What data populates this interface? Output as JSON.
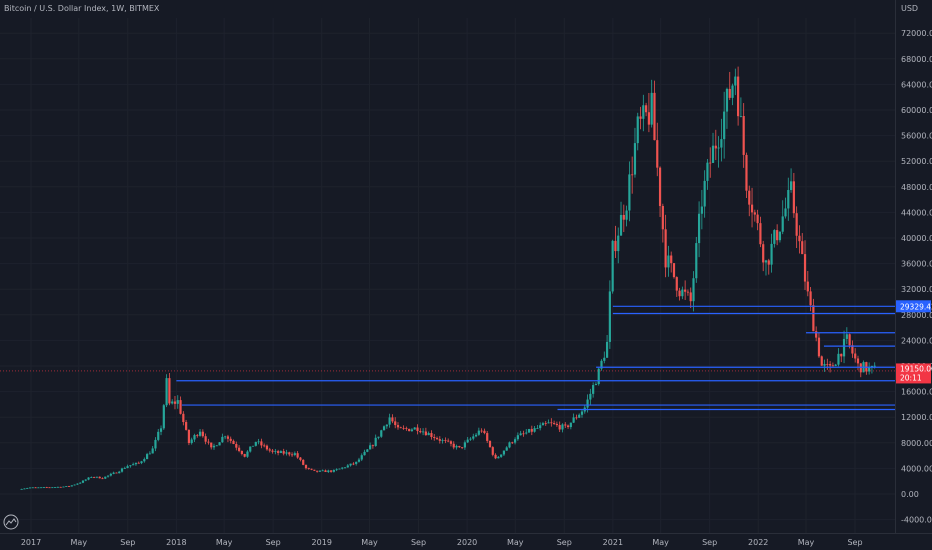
{
  "header": {
    "title": "Bitcoin / U.S. Dollar Index, 1W, BITMEX",
    "currency": "USD"
  },
  "colors": {
    "background": "#161a25",
    "up": "#26a69a",
    "down": "#ef5350",
    "line": "#2962ff",
    "text": "#b2b5be",
    "price_label": "#f23645",
    "level_label": "#2962ff"
  },
  "chart_data": {
    "type": "candlestick",
    "title": "Bitcoin / U.S. Dollar Index, 1W, BITMEX",
    "ylim": [
      -5200,
      75000
    ],
    "y_ticks": [
      -4000,
      0,
      4000,
      8000,
      12000,
      16000,
      20000,
      24000,
      28000,
      32000,
      36000,
      40000,
      44000,
      48000,
      52000,
      56000,
      60000,
      64000,
      68000,
      72000
    ],
    "y_tick_labels": [
      "-4000.00",
      "0.00",
      "4000.00",
      "8000.00",
      "12000.00",
      "16000.00",
      "20000.00",
      "24000.00",
      "28000.00",
      "32000.00",
      "36000.00",
      "40000.00",
      "44000.00",
      "48000.00",
      "52000.00",
      "56000.00",
      "60000.00",
      "64000.00",
      "68000.00",
      "72000.00"
    ],
    "x_ticks": [
      {
        "label": "2017",
        "date": "2017-01-01"
      },
      {
        "label": "May",
        "date": "2017-05-01"
      },
      {
        "label": "Sep",
        "date": "2017-09-01"
      },
      {
        "label": "2018",
        "date": "2018-01-01"
      },
      {
        "label": "May",
        "date": "2018-05-01"
      },
      {
        "label": "Sep",
        "date": "2018-09-01"
      },
      {
        "label": "2019",
        "date": "2019-01-01"
      },
      {
        "label": "May",
        "date": "2019-05-01"
      },
      {
        "label": "Sep",
        "date": "2019-09-01"
      },
      {
        "label": "2020",
        "date": "2020-01-01"
      },
      {
        "label": "May",
        "date": "2020-05-01"
      },
      {
        "label": "Sep",
        "date": "2020-09-01"
      },
      {
        "label": "2021",
        "date": "2021-01-01"
      },
      {
        "label": "May",
        "date": "2021-05-01"
      },
      {
        "label": "Sep",
        "date": "2021-09-01"
      },
      {
        "label": "2022",
        "date": "2022-01-01"
      },
      {
        "label": "May",
        "date": "2022-05-01"
      },
      {
        "label": "Sep",
        "date": "2022-09-01"
      }
    ],
    "x_range": [
      "2016-11-01",
      "2022-12-20"
    ],
    "price_path": [
      [
        "2016-12-05",
        760
      ],
      [
        "2017-01-02",
        1000
      ],
      [
        "2017-02-06",
        1020
      ],
      [
        "2017-03-13",
        1100
      ],
      [
        "2017-04-10",
        1200
      ],
      [
        "2017-05-08",
        1800
      ],
      [
        "2017-06-05",
        2700
      ],
      [
        "2017-07-03",
        2500
      ],
      [
        "2017-08-07",
        3400
      ],
      [
        "2017-09-04",
        4400
      ],
      [
        "2017-10-02",
        4800
      ],
      [
        "2017-11-06",
        7000
      ],
      [
        "2017-11-27",
        10500
      ],
      [
        "2017-12-11",
        17500
      ],
      [
        "2017-12-18",
        14000
      ],
      [
        "2018-01-08",
        14500
      ],
      [
        "2018-02-05",
        8000
      ],
      [
        "2018-03-05",
        10000
      ],
      [
        "2018-04-02",
        7000
      ],
      [
        "2018-05-07",
        9300
      ],
      [
        "2018-06-25",
        6000
      ],
      [
        "2018-07-23",
        8200
      ],
      [
        "2018-09-03",
        6500
      ],
      [
        "2018-10-29",
        6300
      ],
      [
        "2018-11-26",
        4000
      ],
      [
        "2018-12-17",
        3500
      ],
      [
        "2019-02-04",
        3600
      ],
      [
        "2019-04-01",
        4900
      ],
      [
        "2019-05-13",
        7800
      ],
      [
        "2019-06-24",
        12000
      ],
      [
        "2019-07-15",
        10000
      ],
      [
        "2019-09-02",
        10300
      ],
      [
        "2019-10-28",
        8500
      ],
      [
        "2019-12-16",
        7100
      ],
      [
        "2020-02-10",
        10100
      ],
      [
        "2020-03-16",
        5400
      ],
      [
        "2020-05-04",
        8800
      ],
      [
        "2020-07-27",
        11000
      ],
      [
        "2020-09-07",
        10300
      ],
      [
        "2020-10-26",
        13500
      ],
      [
        "2020-11-30",
        19000
      ],
      [
        "2020-12-21",
        23500
      ],
      [
        "2021-01-04",
        38000
      ],
      [
        "2021-02-08",
        46000
      ],
      [
        "2021-03-08",
        57000
      ],
      [
        "2021-04-12",
        60000
      ],
      [
        "2021-05-17",
        37000
      ],
      [
        "2021-06-21",
        32000
      ],
      [
        "2021-07-19",
        30000
      ],
      [
        "2021-08-16",
        46000
      ],
      [
        "2021-09-06",
        52000
      ],
      [
        "2021-10-18",
        61000
      ],
      [
        "2021-11-08",
        66000
      ],
      [
        "2021-12-06",
        49000
      ],
      [
        "2022-01-24",
        36000
      ],
      [
        "2022-03-28",
        47000
      ],
      [
        "2022-05-09",
        31000
      ],
      [
        "2022-06-13",
        20000
      ],
      [
        "2022-07-04",
        19500
      ],
      [
        "2022-08-15",
        24000
      ],
      [
        "2022-09-12",
        20000
      ],
      [
        "2022-10-17",
        19400
      ]
    ],
    "annotations": [
      {
        "type": "hline",
        "value": 29329.42,
        "from": "2021-01-01",
        "label": "29329.42"
      },
      {
        "type": "hline",
        "value": 28200,
        "from": "2021-01-01"
      },
      {
        "type": "hline",
        "value": 25200,
        "from": "2022-05-01"
      },
      {
        "type": "hline",
        "value": 23100,
        "from": "2022-06-15"
      },
      {
        "type": "hline",
        "value": 19800,
        "from": "2020-11-20"
      },
      {
        "type": "hline",
        "value": 17700,
        "from": "2018-01-01"
      },
      {
        "type": "hline",
        "value": 13900,
        "from": "2018-01-15"
      },
      {
        "type": "hline",
        "value": 13200,
        "from": "2020-08-15"
      }
    ],
    "current_price": {
      "value": 19150,
      "label": "19150.00",
      "label2": "20:11"
    }
  }
}
